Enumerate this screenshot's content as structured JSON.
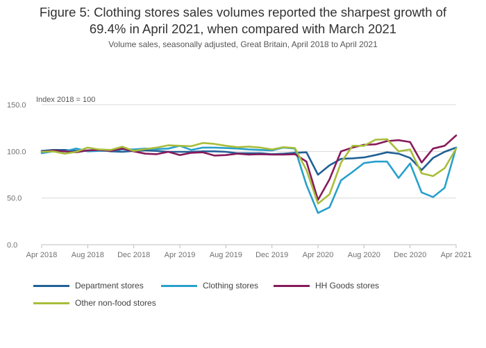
{
  "title_line1": "Figure 5: Clothing stores sales volumes reported the sharpest growth of",
  "title_line2": "69.4% in April 2021, when compared with March 2021",
  "subtitle": "Volume sales, seasonally adjusted, Great Britain, April 2018 to April 2021",
  "chart_data": {
    "type": "line",
    "title": "Figure 5: Clothing stores sales volumes reported the sharpest growth of 69.4% in April 2021, when compared with March 2021",
    "subtitle": "Volume sales, seasonally adjusted, Great Britain, April 2018 to April 2021",
    "ylabel": "Index 2018 = 100",
    "xlabel": "",
    "ylim": [
      0,
      150
    ],
    "yticks": [
      "0.0",
      "50.0",
      "100.0",
      "150.0"
    ],
    "xtick_labels": [
      "Apr 2018",
      "Aug 2018",
      "Dec 2018",
      "Apr 2019",
      "Aug 2019",
      "Dec 2019",
      "Apr 2020",
      "Aug 2020",
      "Dec 2020",
      "Apr 2021"
    ],
    "x": [
      "Apr 2018",
      "May 2018",
      "Jun 2018",
      "Jul 2018",
      "Aug 2018",
      "Sep 2018",
      "Oct 2018",
      "Nov 2018",
      "Dec 2018",
      "Jan 2019",
      "Feb 2019",
      "Mar 2019",
      "Apr 2019",
      "May 2019",
      "Jun 2019",
      "Jul 2019",
      "Aug 2019",
      "Sep 2019",
      "Oct 2019",
      "Nov 2019",
      "Dec 2019",
      "Jan 2020",
      "Feb 2020",
      "Mar 2020",
      "Apr 2020",
      "May 2020",
      "Jun 2020",
      "Jul 2020",
      "Aug 2020",
      "Sep 2020",
      "Oct 2020",
      "Nov 2020",
      "Dec 2020",
      "Jan 2021",
      "Feb 2021",
      "Mar 2021",
      "Apr 2021"
    ],
    "grid": "horizontal",
    "legend_position": "bottom",
    "series": [
      {
        "name": "Department stores",
        "color": "#206095",
        "values": [
          100.5,
          101.5,
          101.5,
          100.5,
          101,
          101.5,
          100,
          99.5,
          100.5,
          101,
          100.5,
          99.5,
          99.5,
          99.5,
          100,
          100,
          99.5,
          98,
          98,
          98,
          97,
          97.5,
          98.5,
          99,
          75,
          85,
          92,
          92.5,
          93.5,
          96,
          99,
          97.5,
          93,
          80,
          93,
          99.5,
          104
        ]
      },
      {
        "name": "Clothing stores",
        "color": "#27a0cc",
        "values": [
          98,
          100,
          100,
          103,
          100,
          100.5,
          100.5,
          102,
          102,
          103,
          102.5,
          103,
          106,
          101.5,
          104,
          104,
          103.5,
          103,
          102,
          101.5,
          101,
          104,
          103,
          64,
          34,
          40,
          69,
          78,
          87.5,
          89,
          89,
          71.5,
          87,
          56,
          51,
          61,
          104
        ]
      },
      {
        "name": "HH Goods stores",
        "color": "#871a5b",
        "values": [
          99.5,
          101,
          100,
          99,
          101,
          101.5,
          100.5,
          103,
          100,
          97.5,
          97,
          99.5,
          96,
          98.5,
          99,
          95.5,
          96,
          97.5,
          96.5,
          97,
          96.5,
          96.5,
          97,
          89,
          48,
          70,
          100,
          104,
          107,
          107.5,
          111,
          112,
          110,
          88,
          103,
          106,
          117
        ]
      },
      {
        "name": "Other non-food stores",
        "color": "#a8bd3a",
        "values": [
          99.5,
          100,
          97.5,
          99.5,
          104,
          102,
          101.5,
          105,
          100.5,
          102.5,
          104,
          106.5,
          106,
          105.5,
          109,
          108,
          106,
          104.5,
          105,
          104,
          102,
          104.5,
          103.5,
          80,
          44,
          54,
          88,
          106,
          106,
          112.5,
          113,
          100,
          102,
          76.5,
          73.5,
          82,
          103
        ]
      }
    ]
  },
  "legend": [
    {
      "label": "Department stores",
      "color": "#206095"
    },
    {
      "label": "Clothing stores",
      "color": "#27a0cc"
    },
    {
      "label": "HH Goods stores",
      "color": "#871a5b"
    },
    {
      "label": "Other non-food stores",
      "color": "#a8bd3a"
    }
  ]
}
